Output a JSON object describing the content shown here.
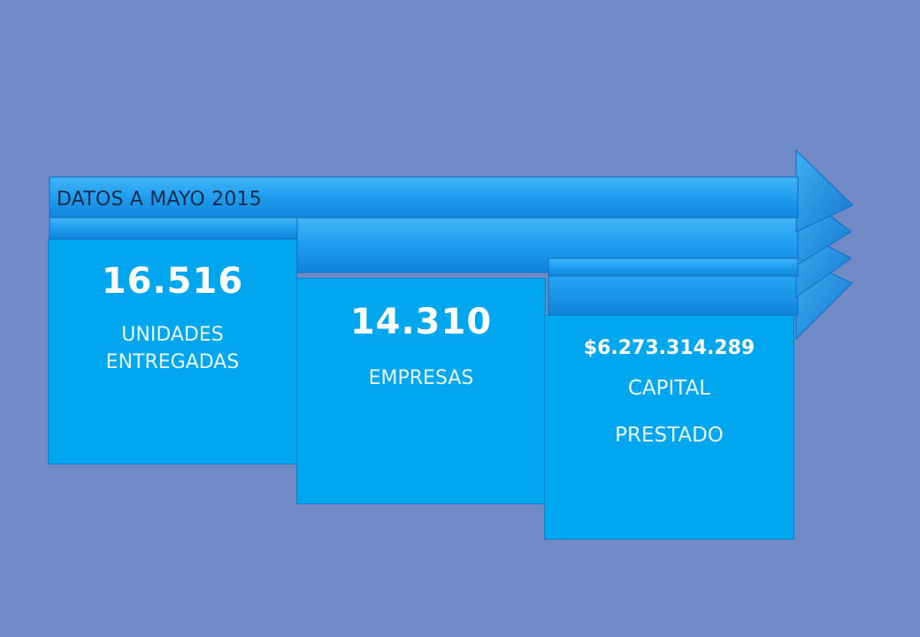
{
  "diagram": {
    "header": "DATOS A MAYO 2015",
    "items": [
      {
        "value": "16.516",
        "label_line1": "UNIDADES",
        "label_line2": "ENTREGADAS"
      },
      {
        "value": "14.310",
        "label_line1": "EMPRESAS",
        "label_line2": ""
      },
      {
        "value": "$6.273.314.289",
        "label_line1": "CAPITAL",
        "label_line2": "PRESTADO"
      }
    ],
    "colors": {
      "background": "#6f8ac4",
      "box_fill": "#00a7ee",
      "arrow_fill": "#1e9ef0",
      "arrow_dark": "#1473c9"
    }
  }
}
